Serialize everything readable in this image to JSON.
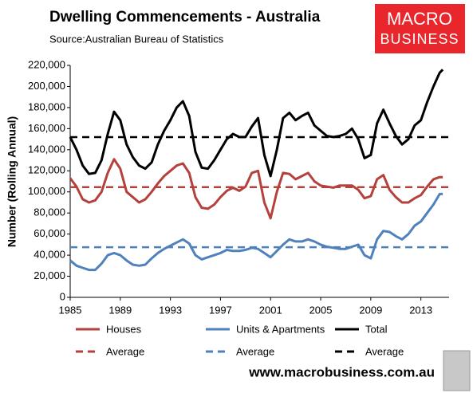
{
  "chart_data": {
    "type": "line",
    "title": "Dwelling Commencements - Australia",
    "subtitle": "Source:Australian Bureau of Statistics",
    "logo": [
      "MACRO",
      "BUSINESS"
    ],
    "website": "www.macrobusiness.com.au",
    "ylabel": "Number (Rolling Annual)",
    "xlim": [
      1985,
      2015.25
    ],
    "xticks": [
      1985,
      1989,
      1993,
      1997,
      2001,
      2005,
      2009,
      2013
    ],
    "ylim": [
      0,
      220000
    ],
    "yticks": [
      0,
      {
        "value": 20000,
        "label": "20,000"
      },
      {
        "value": 40000,
        "label": "40,000"
      },
      {
        "value": 60000,
        "label": "60,000"
      },
      {
        "value": 80000,
        "label": "80,000"
      },
      {
        "value": 100000,
        "label": "100,000"
      },
      {
        "value": 120000,
        "label": "120,000"
      },
      {
        "value": 140000,
        "label": "140,000"
      },
      {
        "value": 160000,
        "label": "160,000"
      },
      {
        "value": 180000,
        "label": "180,000"
      },
      {
        "value": 200000,
        "label": "200,000"
      },
      {
        "value": 220000,
        "label": "220,000"
      }
    ],
    "x": [
      1985,
      1985.5,
      1986,
      1986.5,
      1987,
      1987.5,
      1988,
      1988.5,
      1989,
      1989.5,
      1990,
      1990.5,
      1991,
      1991.5,
      1992,
      1992.5,
      1993,
      1993.5,
      1994,
      1994.5,
      1995,
      1995.5,
      1996,
      1996.5,
      1997,
      1997.5,
      1998,
      1998.5,
      1999,
      1999.5,
      2000,
      2000.5,
      2001,
      2001.5,
      2002,
      2002.5,
      2003,
      2003.5,
      2004,
      2004.5,
      2005,
      2005.5,
      2006,
      2006.5,
      2007,
      2007.5,
      2008,
      2008.5,
      2009,
      2009.5,
      2010,
      2010.5,
      2011,
      2011.5,
      2012,
      2012.5,
      2013,
      2013.5,
      2014,
      2014.5,
      2014.75
    ],
    "series": [
      {
        "name": "Houses",
        "color": "#b5413c",
        "values": [
          113000,
          105000,
          93000,
          90000,
          92000,
          100000,
          118000,
          131000,
          122000,
          100000,
          95000,
          90000,
          93000,
          100000,
          108000,
          115000,
          120000,
          125000,
          127000,
          118000,
          95000,
          85000,
          84000,
          88000,
          95000,
          101000,
          104000,
          101000,
          105000,
          118000,
          120000,
          90000,
          75000,
          100000,
          118000,
          117000,
          112000,
          115000,
          118000,
          110000,
          106000,
          105000,
          104000,
          106000,
          106000,
          106000,
          102000,
          94000,
          96000,
          112000,
          116000,
          102000,
          95000,
          90000,
          90000,
          94000,
          97000,
          105000,
          112000,
          114000,
          114000
        ]
      },
      {
        "name": "Units & Apartments",
        "color": "#4f81bd",
        "values": [
          35000,
          30000,
          28000,
          26000,
          26000,
          32000,
          40000,
          42000,
          40000,
          35000,
          31000,
          30000,
          31000,
          37000,
          42000,
          46000,
          49000,
          52000,
          55000,
          51000,
          40000,
          36000,
          38000,
          40000,
          42000,
          45000,
          44000,
          44000,
          45000,
          47000,
          46000,
          42000,
          38000,
          44000,
          50000,
          55000,
          53000,
          53000,
          55000,
          53000,
          50000,
          48000,
          47000,
          46000,
          46000,
          48000,
          50000,
          40000,
          37000,
          55000,
          63000,
          62000,
          58000,
          55000,
          60000,
          68000,
          72000,
          80000,
          88000,
          98000,
          98000
        ]
      },
      {
        "name": "Total",
        "color": "#000000",
        "values": [
          152000,
          140000,
          125000,
          117000,
          118000,
          130000,
          155000,
          176000,
          168000,
          145000,
          133000,
          125000,
          122000,
          128000,
          145000,
          158000,
          168000,
          180000,
          186000,
          172000,
          138000,
          123000,
          122000,
          130000,
          140000,
          150000,
          155000,
          152000,
          152000,
          162000,
          170000,
          135000,
          115000,
          140000,
          170000,
          175000,
          168000,
          172000,
          175000,
          163000,
          158000,
          153000,
          152000,
          153000,
          155000,
          160000,
          150000,
          132000,
          135000,
          165000,
          178000,
          165000,
          153000,
          145000,
          150000,
          163000,
          168000,
          185000,
          200000,
          213000,
          216000
        ]
      }
    ],
    "averages": [
      {
        "name": "Average",
        "color": "#b5413c",
        "value": 104500
      },
      {
        "name": "Average",
        "color": "#4f81bd",
        "value": 47500
      },
      {
        "name": "Average",
        "color": "#000000",
        "value": 152000
      }
    ]
  }
}
